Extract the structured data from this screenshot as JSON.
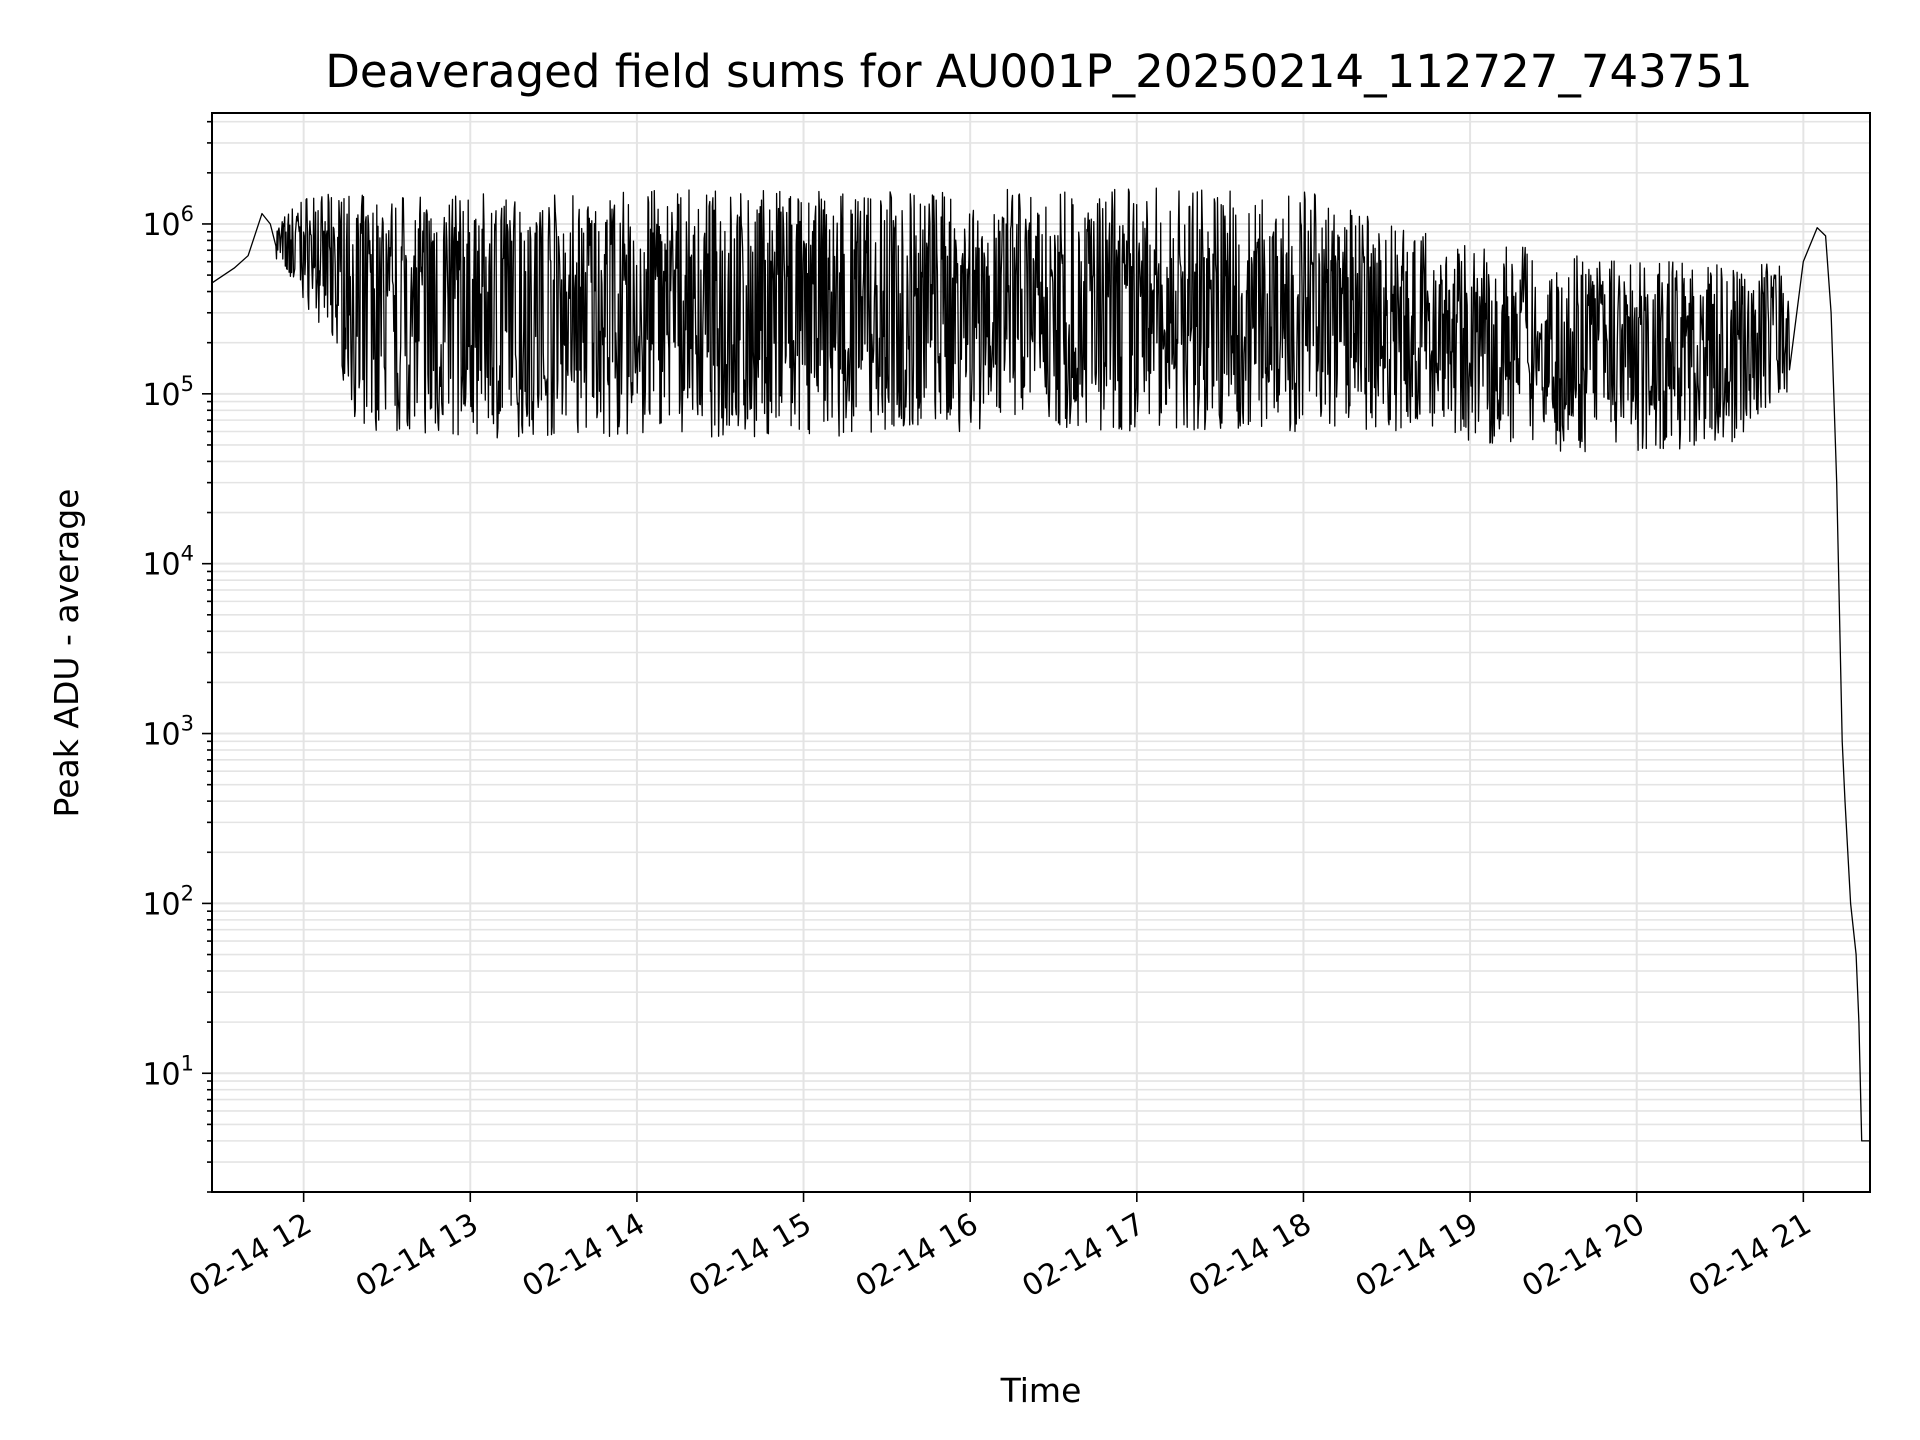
{
  "chart_data": {
    "type": "line",
    "title": "Deaveraged field sums for AU001P_20250214_112727_743751",
    "xlabel": "Time",
    "ylabel": "Peak ADU - average",
    "yscale": "log",
    "ylim": [
      2,
      4500000
    ],
    "xlim": [
      "2025-02-14 11:27",
      "2025-02-14 21:24"
    ],
    "grid": true,
    "x_ticks": [
      "02-14 12",
      "02-14 13",
      "02-14 14",
      "02-14 15",
      "02-14 16",
      "02-14 17",
      "02-14 18",
      "02-14 19",
      "02-14 20",
      "02-14 21"
    ],
    "y_ticks": [
      {
        "base": "10",
        "exp": "1"
      },
      {
        "base": "10",
        "exp": "2"
      },
      {
        "base": "10",
        "exp": "3"
      },
      {
        "base": "10",
        "exp": "4"
      },
      {
        "base": "10",
        "exp": "5"
      },
      {
        "base": "10",
        "exp": "6"
      }
    ],
    "line_color": "#000000",
    "grid_color": "#e4e4e4",
    "series": [
      {
        "x": [
          "2025-02-14 11:27",
          "2025-02-14 11:35",
          "2025-02-14 11:40",
          "2025-02-14 11:45",
          "2025-02-14 11:48",
          "2025-02-14 11:55",
          "2025-02-14 12:00",
          "2025-02-14 12:10",
          "2025-02-14 12:20",
          "2025-02-14 12:30",
          "2025-02-14 12:45",
          "2025-02-14 13:00",
          "2025-02-14 13:30",
          "2025-02-14 14:00",
          "2025-02-14 14:30",
          "2025-02-14 15:00",
          "2025-02-14 15:30",
          "2025-02-14 15:50",
          "2025-02-14 16:00",
          "2025-02-14 16:30",
          "2025-02-14 16:45",
          "2025-02-14 17:00",
          "2025-02-14 17:30",
          "2025-02-14 17:55",
          "2025-02-14 18:10",
          "2025-02-14 18:30",
          "2025-02-14 19:00",
          "2025-02-14 19:30",
          "2025-02-14 20:00",
          "2025-02-14 20:30",
          "2025-02-14 20:50",
          "2025-02-14 21:00",
          "2025-02-14 21:05",
          "2025-02-14 21:08",
          "2025-02-14 21:10",
          "2025-02-14 21:12",
          "2025-02-14 21:14",
          "2025-02-14 21:15",
          "2025-02-14 21:17",
          "2025-02-14 21:19",
          "2025-02-14 21:20",
          "2025-02-14 21:21",
          "2025-02-14 21:24"
        ],
        "y": [
          450000,
          550000,
          650000,
          1150000,
          1000000,
          700000,
          500000,
          250000,
          80000,
          60000,
          60000,
          65000,
          65000,
          60000,
          60000,
          60000,
          60000,
          60000,
          65000,
          75000,
          120000,
          1000000,
          1500000,
          1500000,
          700000,
          400000,
          250000,
          200000,
          300000,
          250000,
          200000,
          600000,
          950000,
          850000,
          300000,
          30000,
          900,
          400,
          100,
          50,
          20,
          4,
          4
        ]
      }
    ],
    "oscillation": {
      "description_note": "",
      "upper_envelope": [
        {
          "x": "2025-02-14 11:50",
          "y": 1000000
        },
        {
          "x": "2025-02-14 12:00",
          "y": 1500000
        },
        {
          "x": "2025-02-14 13:00",
          "y": 1500000
        },
        {
          "x": "2025-02-14 14:00",
          "y": 1600000
        },
        {
          "x": "2025-02-14 15:00",
          "y": 1600000
        },
        {
          "x": "2025-02-14 16:00",
          "y": 1600000
        },
        {
          "x": "2025-02-14 17:00",
          "y": 1650000
        },
        {
          "x": "2025-02-14 18:00",
          "y": 1600000
        },
        {
          "x": "2025-02-14 18:30",
          "y": 1000000
        },
        {
          "x": "2025-02-14 19:00",
          "y": 800000
        },
        {
          "x": "2025-02-14 20:00",
          "y": 600000
        },
        {
          "x": "2025-02-14 20:55",
          "y": 600000
        }
      ],
      "lower_envelope": [
        {
          "x": "2025-02-14 11:50",
          "y": 600000
        },
        {
          "x": "2025-02-14 12:10",
          "y": 200000
        },
        {
          "x": "2025-02-14 12:20",
          "y": 60000
        },
        {
          "x": "2025-02-14 13:00",
          "y": 55000
        },
        {
          "x": "2025-02-14 14:00",
          "y": 55000
        },
        {
          "x": "2025-02-14 15:00",
          "y": 55000
        },
        {
          "x": "2025-02-14 16:00",
          "y": 60000
        },
        {
          "x": "2025-02-14 17:00",
          "y": 60000
        },
        {
          "x": "2025-02-14 18:00",
          "y": 60000
        },
        {
          "x": "2025-02-14 18:30",
          "y": 60000
        },
        {
          "x": "2025-02-14 19:30",
          "y": 45000
        },
        {
          "x": "2025-02-14 20:30",
          "y": 45000
        },
        {
          "x": "2025-02-14 20:55",
          "y": 100000
        }
      ]
    }
  }
}
